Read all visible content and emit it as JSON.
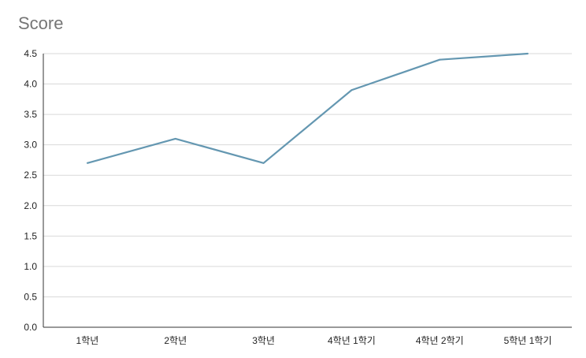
{
  "chart_data": {
    "type": "line",
    "title": "Score",
    "xlabel": "",
    "ylabel": "",
    "categories": [
      "1학년",
      "2학년",
      "3학년",
      "4학년 1학기",
      "4학년 2학기",
      "5학년 1학기"
    ],
    "series": [
      {
        "values": [
          2.7,
          3.1,
          2.7,
          3.9,
          4.4,
          4.5
        ],
        "color": "#6497b1"
      }
    ],
    "ylim": [
      0,
      4.5
    ],
    "yticks": [
      "0.0",
      "0.5",
      "1.0",
      "1.5",
      "2.0",
      "2.5",
      "3.0",
      "3.5",
      "4.0",
      "4.5"
    ],
    "grid": true,
    "legend": "none"
  }
}
